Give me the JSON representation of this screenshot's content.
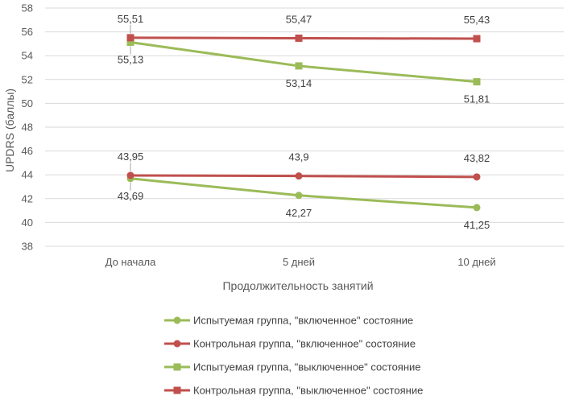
{
  "chart_data": {
    "type": "line",
    "title": "",
    "xlabel": "Продолжительность занятий",
    "ylabel": "UPDRS (баллы)",
    "categories": [
      "До начала",
      "5 дней",
      "10 дней"
    ],
    "ylim": [
      38,
      58
    ],
    "yticks": [
      38,
      40,
      42,
      44,
      46,
      48,
      50,
      52,
      54,
      56,
      58
    ],
    "grid": true,
    "legend_position": "bottom",
    "series": [
      {
        "name": "Испытуемая группа, \"включенное\" состояние",
        "values": [
          43.69,
          42.27,
          41.25
        ],
        "labels": [
          "43,69",
          "42,27",
          "41,25"
        ],
        "color": "#9BBB59",
        "marker": "circle",
        "label_side": "below"
      },
      {
        "name": "Контрольная группа, \"включенное\" состояние",
        "values": [
          43.95,
          43.9,
          43.82
        ],
        "labels": [
          "43,95",
          "43,9",
          "43,82"
        ],
        "color": "#C0504D",
        "marker": "circle",
        "label_side": "above"
      },
      {
        "name": "Испытуемая группа, \"выключенное\" состояние",
        "values": [
          55.13,
          53.14,
          51.81
        ],
        "labels": [
          "55,13",
          "53,14",
          "51,81"
        ],
        "color": "#9BBB59",
        "marker": "square",
        "label_side": "below"
      },
      {
        "name": "Контрольная группа, \"выключенное\" состояние",
        "values": [
          55.51,
          55.47,
          55.43
        ],
        "labels": [
          "55,51",
          "55,47",
          "55,43"
        ],
        "color": "#C0504D",
        "marker": "square",
        "label_side": "above"
      }
    ]
  }
}
